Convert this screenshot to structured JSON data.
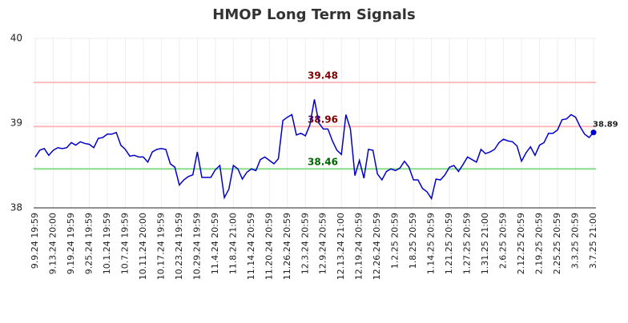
{
  "chart_data": {
    "type": "line",
    "title": "HMOP Long Term Signals",
    "categories": [
      "9.9.24 19:59",
      null,
      null,
      null,
      "9.13.24 20:00",
      null,
      null,
      null,
      "9.19.24 19:59",
      null,
      null,
      null,
      "9.25.24 19:59",
      null,
      null,
      null,
      "10.1.24 19:59",
      null,
      null,
      null,
      "10.7.24 19:59",
      null,
      null,
      null,
      "10.11.24 20:00",
      null,
      null,
      null,
      "10.17.24 19:59",
      null,
      null,
      null,
      "10.23.24 19:59",
      null,
      null,
      null,
      "10.29.24 19:59",
      null,
      null,
      null,
      "11.4.24 20:59",
      null,
      null,
      null,
      "11.8.24 21:00",
      null,
      null,
      null,
      "11.14.24 20:59",
      null,
      null,
      null,
      "11.20.24 20:59",
      null,
      null,
      null,
      "11.26.24 20:59",
      null,
      null,
      null,
      "12.3.24 20:59",
      null,
      null,
      null,
      "12.9.24 20:59",
      null,
      null,
      null,
      "12.13.24 21:00",
      null,
      null,
      null,
      "12.19.24 20:59",
      null,
      null,
      null,
      "12.26.24 20:59",
      null,
      null,
      null,
      "1.2.25 20:59",
      null,
      null,
      null,
      "1.8.25 20:59",
      null,
      null,
      null,
      "1.14.25 20:59",
      null,
      null,
      null,
      "1.21.25 20:59",
      null,
      null,
      null,
      "1.27.25 20:59",
      null,
      null,
      null,
      "1.31.25 21:00",
      null,
      null,
      null,
      "2.6.25 20:59",
      null,
      null,
      null,
      "2.12.25 20:59",
      null,
      null,
      null,
      "2.19.25 20:59",
      null,
      null,
      null,
      "2.25.25 20:59",
      null,
      null,
      null,
      "3.3.25 20:59",
      null,
      null,
      null,
      "3.7.25 21:00"
    ],
    "series": [
      {
        "color": "#0000cc",
        "values": [
          38.6,
          38.68,
          38.7,
          38.62,
          38.68,
          38.71,
          38.7,
          38.71,
          38.77,
          38.74,
          38.78,
          38.76,
          38.75,
          38.71,
          38.82,
          38.83,
          38.87,
          38.87,
          38.89,
          38.74,
          38.69,
          38.61,
          38.62,
          38.6,
          38.6,
          38.54,
          38.66,
          38.69,
          38.7,
          38.69,
          38.52,
          38.48,
          38.27,
          38.33,
          38.37,
          38.39,
          38.66,
          38.36,
          38.36,
          38.36,
          38.45,
          38.5,
          38.12,
          38.22,
          38.5,
          38.46,
          38.34,
          38.42,
          38.46,
          38.44,
          38.57,
          38.6,
          38.56,
          38.52,
          38.58,
          39.03,
          39.07,
          39.1,
          38.86,
          38.88,
          38.85,
          38.98,
          39.28,
          39.0,
          38.93,
          38.93,
          38.79,
          38.68,
          38.63,
          39.1,
          38.93,
          38.38,
          38.56,
          38.35,
          38.69,
          38.68,
          38.4,
          38.33,
          38.43,
          38.46,
          38.44,
          38.47,
          38.55,
          38.48,
          38.33,
          38.33,
          38.23,
          38.19,
          38.11,
          38.34,
          38.33,
          38.39,
          38.48,
          38.5,
          38.43,
          38.51,
          38.6,
          38.57,
          38.54,
          38.69,
          38.64,
          38.66,
          38.69,
          38.77,
          38.81,
          38.79,
          38.78,
          38.73,
          38.55,
          38.65,
          38.72,
          38.62,
          38.74,
          38.77,
          38.88,
          38.88,
          38.92,
          39.04,
          39.05,
          39.1,
          39.07,
          38.96,
          38.87,
          38.83,
          38.89
        ]
      }
    ],
    "reference_lines": [
      {
        "value": 39.48,
        "line_color": "#ffbbbb",
        "text_color": "#800000"
      },
      {
        "value": 38.96,
        "line_color": "#ffbbbb",
        "text_color": "#800000"
      },
      {
        "value": 38.46,
        "line_color": "#88dd88",
        "text_color": "#006600"
      }
    ],
    "ylim": [
      38,
      40
    ],
    "yticks": [
      38,
      39,
      40
    ],
    "grid": true
  }
}
